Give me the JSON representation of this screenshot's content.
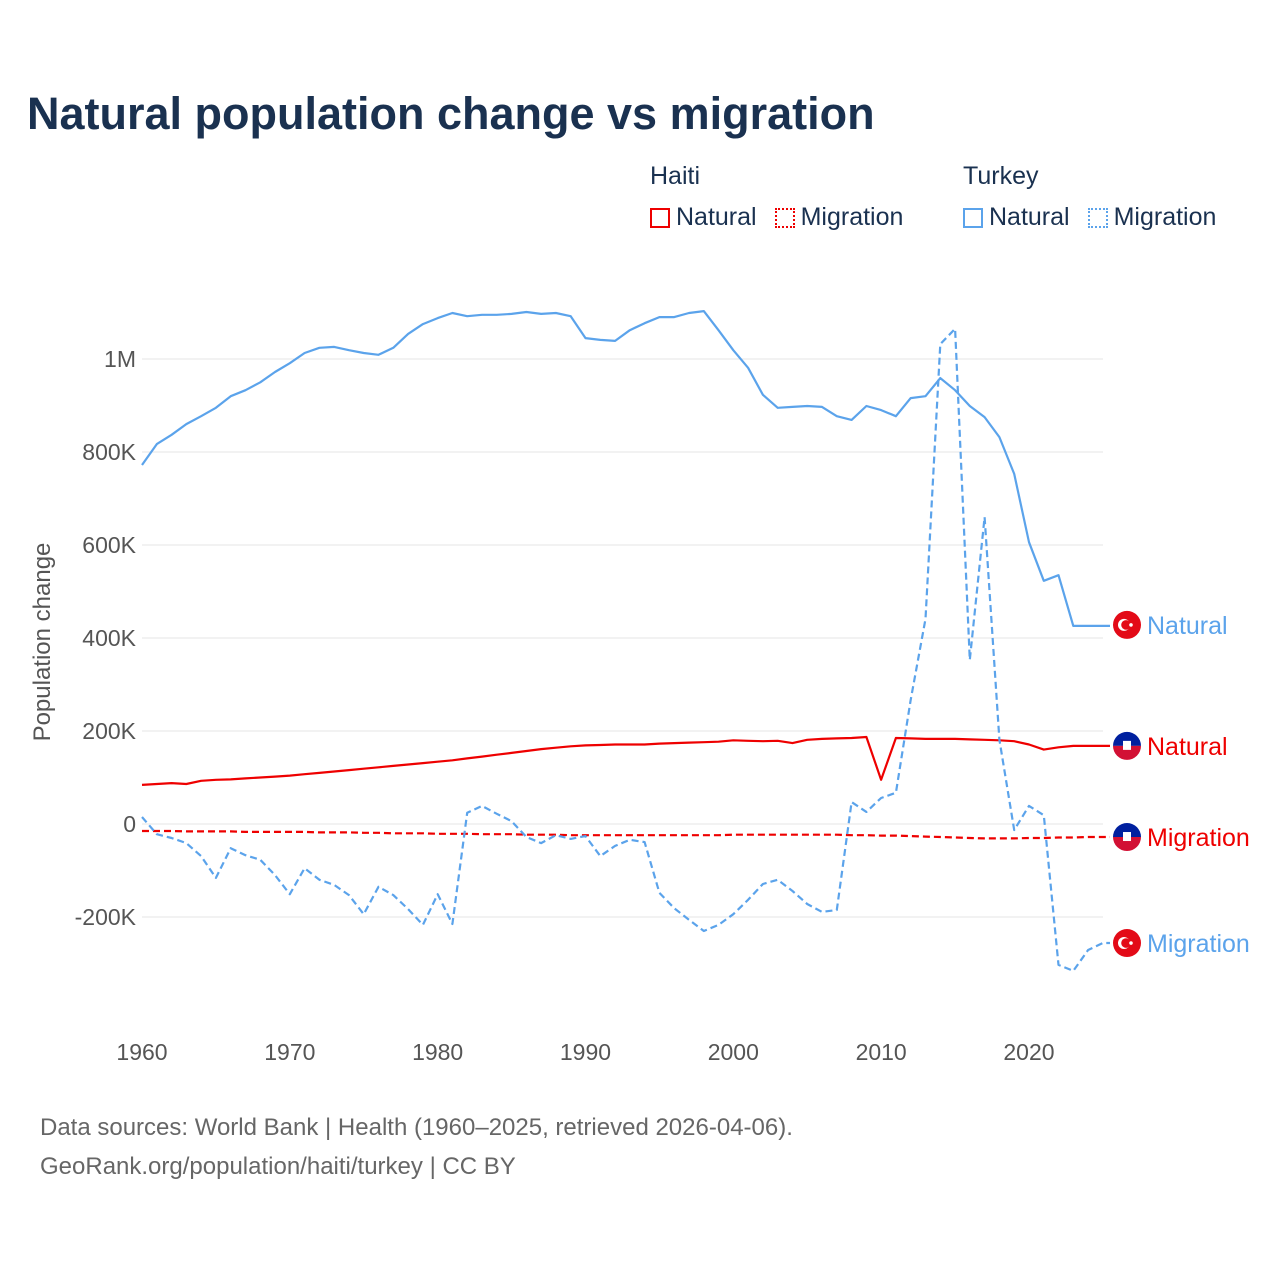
{
  "title": "Natural population change vs migration",
  "legend": {
    "groups": [
      {
        "name": "Haiti",
        "items": [
          {
            "label": "Natural",
            "style": "solid",
            "color": "#ee0000"
          },
          {
            "label": "Migration",
            "style": "dotted",
            "color": "#ee0000"
          }
        ]
      },
      {
        "name": "Turkey",
        "items": [
          {
            "label": "Natural",
            "style": "solid",
            "color": "#5ba3eb"
          },
          {
            "label": "Migration",
            "style": "dotted",
            "color": "#5ba3eb"
          }
        ]
      }
    ]
  },
  "footer": {
    "line1": "Data sources: World Bank | Health (1960–2025, retrieved 2026-04-06).",
    "line2": "GeoRank.org/population/haiti/turkey | CC BY"
  },
  "chart_data": {
    "type": "line",
    "title": "Natural population change vs migration",
    "xlabel": "",
    "ylabel": "Population change",
    "xlim": [
      1960,
      2025
    ],
    "ylim": [
      -350000,
      1150000
    ],
    "x_ticks": [
      1960,
      1970,
      1980,
      1990,
      2000,
      2010,
      2020
    ],
    "x_tick_labels": [
      "1960",
      "1970",
      "1980",
      "1990",
      "2000",
      "2010",
      "2020"
    ],
    "y_ticks": [
      -200000,
      0,
      200000,
      400000,
      600000,
      800000,
      1000000
    ],
    "y_tick_labels": [
      "-200K",
      "0",
      "200K",
      "400K",
      "600K",
      "800K",
      "1M"
    ],
    "grid": true,
    "series": [
      {
        "name": "Turkey Natural",
        "end_label": "Natural",
        "country": "Turkey",
        "color": "#5ba3eb",
        "dash": false,
        "start": 1960,
        "values": [
          772000,
          817000,
          837000,
          860000,
          877000,
          895000,
          920000,
          933000,
          950000,
          972000,
          991000,
          1013000,
          1024000,
          1026000,
          1019000,
          1013000,
          1009000,
          1024000,
          1054000,
          1075000,
          1088000,
          1099000,
          1092000,
          1095000,
          1095000,
          1097000,
          1101000,
          1097000,
          1099000,
          1092000,
          1045000,
          1041000,
          1039000,
          1062000,
          1077000,
          1090000,
          1090000,
          1099000,
          1103000,
          1062000,
          1019000,
          981000,
          923000,
          895000,
          897000,
          899000,
          897000,
          877000,
          869000,
          899000,
          890000,
          877000,
          916000,
          920000,
          959000,
          933000,
          899000,
          875000,
          832000,
          753000,
          606000,
          523000,
          535000,
          426000
        ]
      },
      {
        "name": "Haiti Natural",
        "end_label": "Natural",
        "country": "Haiti",
        "color": "#ee0000",
        "dash": false,
        "start": 1960,
        "values": [
          84000,
          86000,
          88000,
          86000,
          93000,
          95000,
          96000,
          98000,
          100000,
          102000,
          104000,
          107000,
          110000,
          113000,
          116000,
          119000,
          122000,
          125000,
          128000,
          131000,
          134000,
          137000,
          141000,
          145000,
          149000,
          153000,
          157000,
          161000,
          164000,
          167000,
          169000,
          170000,
          171000,
          171000,
          171000,
          173000,
          174000,
          175000,
          176000,
          177000,
          180000,
          179000,
          178000,
          179000,
          174000,
          181000,
          183000,
          184000,
          185000,
          187000,
          95000,
          185000,
          184000,
          183000,
          183000,
          183000,
          182000,
          181000,
          180000,
          178000,
          171000,
          160000,
          165000,
          168000
        ]
      },
      {
        "name": "Haiti Migration",
        "end_label": "Migration",
        "country": "Haiti",
        "color": "#ee0000",
        "dash": true,
        "start": 1960,
        "values": [
          -15000,
          -15000,
          -15000,
          -16000,
          -16000,
          -16000,
          -16000,
          -17000,
          -17000,
          -17000,
          -17000,
          -17000,
          -18000,
          -18000,
          -18000,
          -19000,
          -19000,
          -20000,
          -20000,
          -20000,
          -21000,
          -21000,
          -21000,
          -22000,
          -22000,
          -22000,
          -23000,
          -23000,
          -23000,
          -24000,
          -24000,
          -24000,
          -24000,
          -24000,
          -24000,
          -24000,
          -24000,
          -24000,
          -24000,
          -24000,
          -23000,
          -23000,
          -23000,
          -23000,
          -23000,
          -23000,
          -23000,
          -23000,
          -24000,
          -24000,
          -25000,
          -25000,
          -26000,
          -27000,
          -28000,
          -29000,
          -30000,
          -31000,
          -31000,
          -31000,
          -30000,
          -30000,
          -29000,
          -29000,
          -28000,
          -28000
        ]
      },
      {
        "name": "Turkey Migration",
        "end_label": "Migration",
        "country": "Turkey",
        "color": "#5ba3eb",
        "dash": true,
        "start": 1960,
        "values": [
          15000,
          -22000,
          -30000,
          -41000,
          -69000,
          -116000,
          -52000,
          -67000,
          -77000,
          -110000,
          -151000,
          -95000,
          -120000,
          -131000,
          -153000,
          -194000,
          -135000,
          -153000,
          -183000,
          -217000,
          -151000,
          -215000,
          24000,
          39000,
          22000,
          6000,
          -28000,
          -41000,
          -24000,
          -32000,
          -26000,
          -69000,
          -47000,
          -34000,
          -39000,
          -148000,
          -181000,
          -206000,
          -230000,
          -217000,
          -194000,
          -163000,
          -129000,
          -120000,
          -144000,
          -172000,
          -189000,
          -185000,
          47000,
          26000,
          56000,
          67000,
          267000,
          441000,
          1032000,
          1065000,
          353000,
          660000,
          181000,
          -13000,
          39000,
          19000,
          -303000,
          -316000,
          -271000,
          -256000
        ]
      }
    ]
  }
}
